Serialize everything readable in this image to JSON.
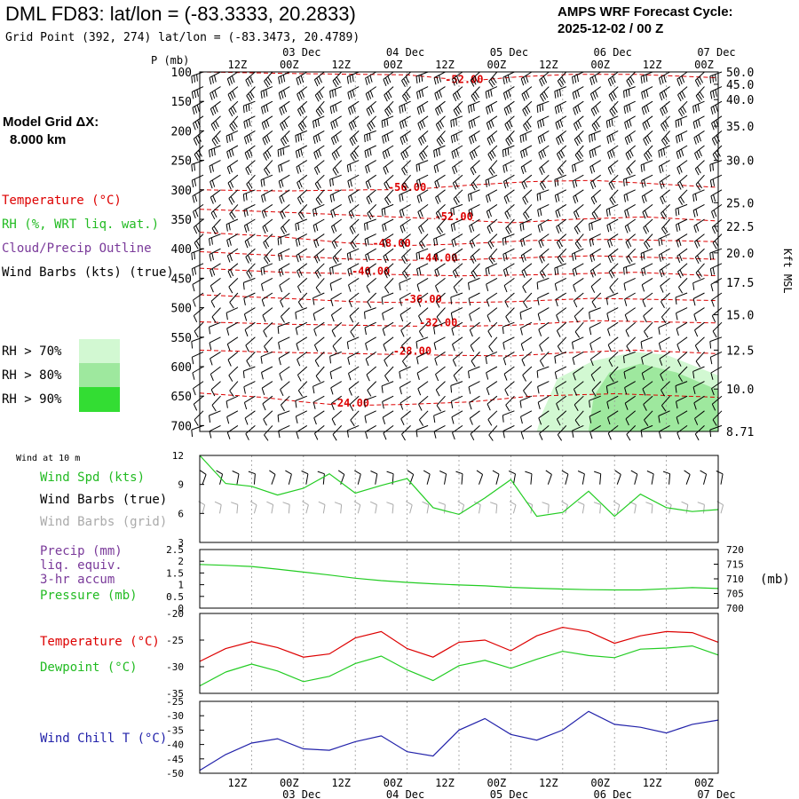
{
  "header": {
    "station_title": "DML FD83:  lat/lon = (-83.3333, 20.2833)",
    "grid_point": "Grid Point (392, 274) lat/lon = (-83.3473, 20.4789)",
    "forecast_label": "AMPS WRF Forecast Cycle:",
    "cycle": "2025-12-02 / 00  Z"
  },
  "left_legend": {
    "model_grid_1": "Model Grid ΔX:",
    "model_grid_2": "8.000 km",
    "temperature": "Temperature (°C)",
    "rh": "RH (%, WRT liq. wat.)",
    "cloud": "Cloud/Precip Outline",
    "wind_barbs": "Wind Barbs (kts) (true)",
    "rh70": "RH > 70%",
    "rh80": "RH > 80%",
    "rh90": "RH > 90%"
  },
  "colors": {
    "temperature": "#dd0000",
    "rh_label": "#dd0000",
    "cloud": "#7a3a9a",
    "green": "#22cc22",
    "rh70": "#d2f8d2",
    "rh80": "#9ee89e",
    "rh90": "#33dd33",
    "blue": "#2222aa",
    "grey": "#aaaaaa"
  },
  "time_axis": {
    "hour_labels": [
      "12Z",
      "00Z",
      "12Z",
      "00Z",
      "12Z",
      "00Z",
      "12Z",
      "00Z",
      "12Z",
      "00Z"
    ],
    "hour_positions": [
      0.5,
      1.0,
      1.5,
      2.0,
      2.5,
      3.0,
      3.5,
      4.0,
      4.5,
      5.0
    ],
    "date_labels": [
      "03 Dec",
      "04 Dec",
      "05 Dec",
      "06 Dec",
      "07 Dec"
    ],
    "date_positions": [
      1.0,
      2.0,
      3.0,
      4.0,
      5.0
    ]
  },
  "chart_data": [
    {
      "id": "upper-air",
      "type": "heatmap",
      "ylabel": "P (mb)",
      "y2label": "Kft MSL",
      "ylim": [
        100,
        710
      ],
      "p_ticks": [
        100,
        150,
        200,
        250,
        300,
        350,
        400,
        450,
        500,
        550,
        600,
        650,
        700
      ],
      "kft_ticks": [
        {
          "p": 100,
          "label": "50.0"
        },
        {
          "p": 121,
          "label": "45.0"
        },
        {
          "p": 147,
          "label": "40.0"
        },
        {
          "p": 192,
          "label": "35.0"
        },
        {
          "p": 250,
          "label": "30.0"
        },
        {
          "p": 322,
          "label": "25.0"
        },
        {
          "p": 362,
          "label": "22.5"
        },
        {
          "p": 407,
          "label": "20.0"
        },
        {
          "p": 457,
          "label": "17.5"
        },
        {
          "p": 512,
          "label": "15.0"
        },
        {
          "p": 572,
          "label": "12.5"
        },
        {
          "p": 638,
          "label": "10.0"
        },
        {
          "p": 710,
          "label": "8.71"
        }
      ],
      "temperature_contours": [
        {
          "label": "-52.00",
          "label_x": 2.55,
          "label_p": 117,
          "points": [
            [
              0,
              100
            ],
            [
              1,
              103
            ],
            [
              2,
              105
            ],
            [
              2.6,
              115
            ],
            [
              3.1,
              108
            ],
            [
              3.6,
              104
            ],
            [
              4.2,
              104
            ],
            [
              5,
              110
            ]
          ]
        },
        {
          "label": "-56.00",
          "label_x": 2.0,
          "label_p": 300,
          "points": [
            [
              0,
              300
            ],
            [
              0.8,
              302
            ],
            [
              1.6,
              300
            ],
            [
              2.0,
              300
            ],
            [
              2.6,
              292
            ],
            [
              3.2,
              286
            ],
            [
              3.8,
              284
            ],
            [
              4.4,
              290
            ],
            [
              5,
              296
            ]
          ]
        },
        {
          "label": "-52.00",
          "label_x": 2.45,
          "label_p": 350,
          "points": [
            [
              0,
              333
            ],
            [
              0.8,
              338
            ],
            [
              1.6,
              344
            ],
            [
              2.4,
              350
            ],
            [
              3.0,
              356
            ],
            [
              3.6,
              350
            ],
            [
              4.3,
              346
            ],
            [
              5,
              353
            ]
          ]
        },
        {
          "label": "-48.00",
          "label_x": 1.85,
          "label_p": 395,
          "points": [
            [
              0,
              372
            ],
            [
              0.8,
              380
            ],
            [
              1.4,
              390
            ],
            [
              1.9,
              395
            ],
            [
              2.5,
              392
            ],
            [
              3.2,
              386
            ],
            [
              4,
              384
            ],
            [
              5,
              388
            ]
          ]
        },
        {
          "label": "-44.00",
          "label_x": 2.3,
          "label_p": 420,
          "points": [
            [
              0,
              405
            ],
            [
              0.8,
              412
            ],
            [
              1.5,
              418
            ],
            [
              2.3,
              420
            ],
            [
              3.0,
              416
            ],
            [
              3.8,
              412
            ],
            [
              5,
              418
            ]
          ]
        },
        {
          "label": "-40.00",
          "label_x": 1.65,
          "label_p": 443,
          "points": [
            [
              0,
              433
            ],
            [
              0.8,
              440
            ],
            [
              1.65,
              443
            ],
            [
              2.5,
              446
            ],
            [
              3.3,
              444
            ],
            [
              4.2,
              440
            ],
            [
              5,
              446
            ]
          ]
        },
        {
          "label": "-36.00",
          "label_x": 2.15,
          "label_p": 490,
          "points": [
            [
              0,
              478
            ],
            [
              0.8,
              484
            ],
            [
              1.5,
              490
            ],
            [
              2.2,
              492
            ],
            [
              3.0,
              490
            ],
            [
              3.8,
              484
            ],
            [
              5,
              488
            ]
          ]
        },
        {
          "label": "-32.00",
          "label_x": 2.3,
          "label_p": 530,
          "points": [
            [
              0,
              524
            ],
            [
              0.8,
              528
            ],
            [
              1.6,
              530
            ],
            [
              2.3,
              532
            ],
            [
              3.0,
              530
            ],
            [
              3.8,
              522
            ],
            [
              5,
              526
            ]
          ]
        },
        {
          "label": "-28.00",
          "label_x": 2.05,
          "label_p": 578,
          "points": [
            [
              0,
              572
            ],
            [
              0.8,
              576
            ],
            [
              1.5,
              578
            ],
            [
              2.1,
              580
            ],
            [
              3.0,
              582
            ],
            [
              3.6,
              576
            ],
            [
              4.2,
              572
            ],
            [
              5,
              578
            ]
          ]
        },
        {
          "label": "-24.00",
          "label_x": 1.45,
          "label_p": 666,
          "points": [
            [
              0,
              645
            ],
            [
              0.6,
              652
            ],
            [
              1.0,
              660
            ],
            [
              1.4,
              666
            ],
            [
              2.0,
              664
            ],
            [
              2.6,
              660
            ],
            [
              3.2,
              650
            ],
            [
              4,
              646
            ],
            [
              5,
              652
            ]
          ]
        }
      ],
      "rh_regions": [
        {
          "level": "70",
          "points": [
            [
              3.25,
              710
            ],
            [
              3.3,
              680
            ],
            [
              3.45,
              620
            ],
            [
              3.8,
              590
            ],
            [
              4.2,
              575
            ],
            [
              4.5,
              580
            ],
            [
              5,
              615
            ],
            [
              5,
              710
            ]
          ]
        },
        {
          "level": "80",
          "points": [
            [
              3.75,
              710
            ],
            [
              3.8,
              650
            ],
            [
              3.95,
              610
            ],
            [
              4.25,
              595
            ],
            [
              4.6,
              610
            ],
            [
              5,
              640
            ],
            [
              5,
              710
            ]
          ]
        }
      ],
      "barb_x": [
        0.0,
        0.167,
        0.333,
        0.5,
        0.667,
        0.833,
        1.0,
        1.167,
        1.333,
        1.5,
        1.667,
        1.833,
        2.0,
        2.167,
        2.333,
        2.5,
        2.667,
        2.833,
        3.0,
        3.167,
        3.333,
        3.5,
        3.667,
        3.833,
        4.0,
        4.167,
        4.333,
        4.5,
        4.667,
        4.833,
        5.0
      ],
      "barb_levels": [
        100,
        125,
        150,
        175,
        200,
        225,
        250,
        275,
        300,
        325,
        350,
        375,
        400,
        425,
        450,
        475,
        500,
        525,
        550,
        575,
        600,
        625,
        650,
        675,
        700
      ]
    },
    {
      "id": "wind",
      "type": "line",
      "title": "Wind at 10 m",
      "ylim": [
        3,
        12
      ],
      "y_ticks": [
        3,
        6,
        9,
        12
      ],
      "x": [
        0.0,
        0.25,
        0.5,
        0.75,
        1.0,
        1.25,
        1.5,
        1.75,
        2.0,
        2.25,
        2.5,
        2.75,
        3.0,
        3.25,
        3.5,
        3.75,
        4.0,
        4.25,
        4.5,
        4.75,
        5.0
      ],
      "series": [
        {
          "name": "Wind Spd (kts)",
          "values": [
            12.0,
            9.1,
            8.8,
            7.9,
            8.6,
            10.1,
            8.1,
            8.9,
            9.6,
            6.6,
            5.9,
            7.6,
            9.5,
            5.7,
            6.1,
            8.3,
            5.7,
            8.0,
            6.6,
            6.2,
            6.4
          ]
        }
      ],
      "barb_labels": [
        "Wind Barbs (true)",
        "Wind Barbs (grid)"
      ],
      "barb_x": [
        0.0,
        0.167,
        0.333,
        0.5,
        0.667,
        0.833,
        1.0,
        1.167,
        1.333,
        1.5,
        1.667,
        1.833,
        2.0,
        2.167,
        2.333,
        2.5,
        2.667,
        2.833,
        3.0,
        3.167,
        3.333,
        3.5,
        3.667,
        3.833,
        4.0,
        4.167,
        4.333,
        4.5,
        4.667,
        4.833,
        5.0
      ]
    },
    {
      "id": "precip",
      "type": "line",
      "labels": [
        "Precip (mm)",
        "liq. equiv.",
        "3-hr accum",
        "Pressure (mb)"
      ],
      "ylim": [
        0.0,
        2.5
      ],
      "y_ticks": [
        0.0,
        0.5,
        1.0,
        1.5,
        2.0,
        2.5
      ],
      "y2lim": [
        700,
        720
      ],
      "y2_ticks": [
        700,
        705,
        710,
        715,
        720
      ],
      "y2label": "(mb)",
      "x": [
        0.0,
        0.25,
        0.5,
        0.75,
        1.0,
        1.25,
        1.5,
        1.75,
        2.0,
        2.25,
        2.5,
        2.75,
        3.0,
        3.25,
        3.5,
        3.75,
        4.0,
        4.25,
        4.5,
        4.75,
        5.0
      ],
      "series": [
        {
          "name": "Pressure (mb)",
          "axis": "y2",
          "values": [
            714.9,
            714.6,
            714.2,
            713.3,
            712.3,
            711.3,
            710.2,
            709.4,
            708.8,
            708.3,
            707.9,
            707.6,
            707.1,
            706.8,
            706.5,
            706.3,
            706.2,
            706.2,
            706.6,
            707.0,
            706.7
          ]
        },
        {
          "name": "Precip (mm)",
          "axis": "y",
          "values": [
            0.0,
            0.0,
            0.0,
            0.0,
            0.0,
            0.0,
            0.0,
            0.0,
            0.0,
            0.0,
            0.0,
            0.0,
            0.0,
            0.0,
            0.0,
            0.0,
            0.0,
            0.0,
            0.0,
            0.0,
            0.0
          ]
        }
      ]
    },
    {
      "id": "temperature",
      "type": "line",
      "ylim": [
        -35,
        -20
      ],
      "y_ticks": [
        -35,
        -30,
        -25,
        -20
      ],
      "x": [
        0.0,
        0.25,
        0.5,
        0.75,
        1.0,
        1.25,
        1.5,
        1.75,
        2.0,
        2.25,
        2.5,
        2.75,
        3.0,
        3.25,
        3.5,
        3.75,
        4.0,
        4.25,
        4.5,
        4.75,
        5.0
      ],
      "series": [
        {
          "name": "Temperature (°C)",
          "color": "#dd0000",
          "values": [
            -29.0,
            -26.6,
            -25.3,
            -26.4,
            -28.2,
            -27.6,
            -24.6,
            -23.4,
            -26.6,
            -28.2,
            -25.4,
            -25.0,
            -27.0,
            -24.2,
            -22.6,
            -23.4,
            -25.6,
            -24.2,
            -23.4,
            -23.6,
            -25.4
          ]
        },
        {
          "name": "Dewpoint (°C)",
          "color": "#22cc22",
          "values": [
            -33.6,
            -31.0,
            -29.5,
            -30.8,
            -32.8,
            -31.8,
            -29.4,
            -28.0,
            -30.6,
            -32.6,
            -29.8,
            -28.8,
            -30.3,
            -28.6,
            -27.1,
            -27.9,
            -28.3,
            -26.7,
            -26.5,
            -26.1,
            -27.8
          ]
        }
      ]
    },
    {
      "id": "windchill",
      "type": "line",
      "ylim": [
        -50,
        -25
      ],
      "y_ticks": [
        -50,
        -45,
        -40,
        -35,
        -30,
        -25
      ],
      "x": [
        0.0,
        0.25,
        0.5,
        0.75,
        1.0,
        1.25,
        1.5,
        1.75,
        2.0,
        2.25,
        2.5,
        2.75,
        3.0,
        3.25,
        3.5,
        3.75,
        4.0,
        4.25,
        4.5,
        4.75,
        5.0
      ],
      "series": [
        {
          "name": "Wind Chill T (°C)",
          "color": "#2222aa",
          "values": [
            -49.0,
            -43.5,
            -39.5,
            -38.0,
            -41.5,
            -42.0,
            -39.0,
            -37.0,
            -42.5,
            -44.0,
            -35.0,
            -31.0,
            -36.5,
            -38.5,
            -35.0,
            -28.5,
            -33.0,
            -34.0,
            -36.0,
            -33.0,
            -31.5
          ]
        }
      ]
    }
  ]
}
